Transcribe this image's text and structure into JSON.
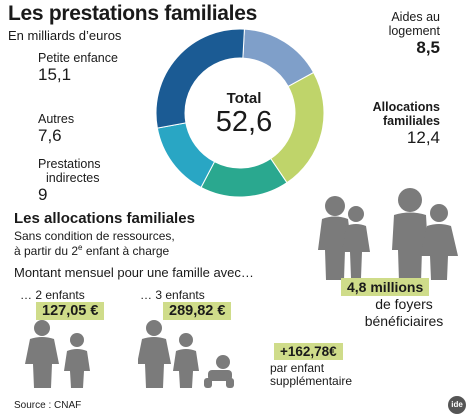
{
  "header": {
    "title": "Les prestations familiales",
    "subtitle": "En milliards d’euros"
  },
  "chart_data": {
    "type": "pie",
    "center_label": "Total",
    "total": "52,6",
    "segments": [
      {
        "label": "Aides au logement",
        "value_label": "8,5",
        "value": 8.5,
        "color": "#7f9fc9"
      },
      {
        "label": "Allocations familiales",
        "value_label": "12,4",
        "value": 12.4,
        "color": "#bfd46a"
      },
      {
        "label": "Prestations indirectes",
        "value_label": "9",
        "value": 9,
        "color": "#2aa88f"
      },
      {
        "label": "Autres",
        "value_label": "7,6",
        "value": 7.6,
        "color": "#29a6c4"
      },
      {
        "label": "Petite enfance",
        "value_label": "15,1",
        "value": 15.1,
        "color": "#1b5b94"
      }
    ]
  },
  "labels": {
    "aides_l1": "Aides au",
    "aides_l2": "logement",
    "aides_val": "8,5",
    "alloc_l1": "Allocations",
    "alloc_l2": "familiales",
    "alloc_val": "12,4",
    "presta_l1": "Prestations",
    "presta_l2": "indirectes",
    "presta_val": "9",
    "autres_l1": "Autres",
    "autres_val": "7,6",
    "petite_l1": "Petite enfance",
    "petite_val": "15,1"
  },
  "foyers": {
    "value": "4,8 millions",
    "line2": "de foyers",
    "line3": "bénéficiaires"
  },
  "allocations": {
    "title": "Les allocations familiales",
    "line1": "Sans condition de ressources,",
    "line2_pre": "à partir du 2",
    "line2_sup": "e",
    "line2_post": " enfant à charge",
    "montant": "Montant mensuel pour une famille avec…",
    "two_children": "… 2 enfants",
    "two_amount": "127,05 €",
    "three_children": "… 3 enfants",
    "three_amount": "289,82 €",
    "extra_amount": "+162,78€",
    "extra_l1": "par enfant",
    "extra_l2": "supplémentaire"
  },
  "footer": {
    "source": "Source : CNAF",
    "logo": "ide"
  }
}
